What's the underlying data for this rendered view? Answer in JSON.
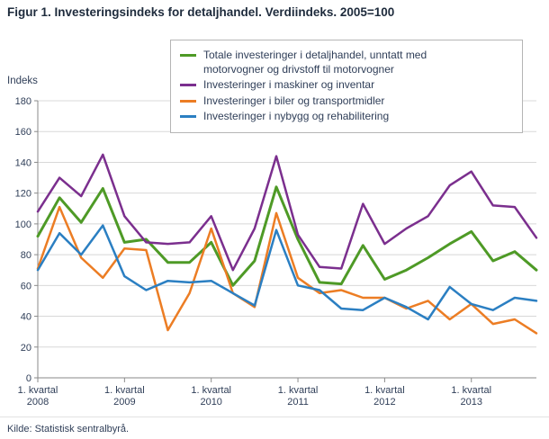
{
  "source": "Kilde: Statistisk sentralbyrå.",
  "chart_data": {
    "type": "line",
    "title": "Figur 1. Investeringsindeks for detaljhandel. Verdiindeks. 2005=100",
    "ylabel": "Indeks",
    "xlabel": "",
    "ylim": [
      0,
      180
    ],
    "ytick_step": 20,
    "y_tick_labels": [
      0,
      20,
      40,
      60,
      80,
      100,
      120,
      140,
      160,
      180
    ],
    "grid": true,
    "legend_position": "top-inside",
    "categories": [
      "2008K1",
      "2008K2",
      "2008K3",
      "2008K4",
      "2009K1",
      "2009K2",
      "2009K3",
      "2009K4",
      "2010K1",
      "2010K2",
      "2010K3",
      "2010K4",
      "2011K1",
      "2011K2",
      "2011K3",
      "2011K4",
      "2012K1",
      "2012K2",
      "2012K3",
      "2012K4",
      "2013K1",
      "2013K2",
      "2013K3",
      "2013K4"
    ],
    "x_ticks": [
      {
        "index": 0,
        "line1": "1. kvartal",
        "line2": "2008"
      },
      {
        "index": 4,
        "line1": "1. kvartal",
        "line2": "2009"
      },
      {
        "index": 8,
        "line1": "1. kvartal",
        "line2": "2010"
      },
      {
        "index": 12,
        "line1": "1. kvartal",
        "line2": "2011"
      },
      {
        "index": 16,
        "line1": "1. kvartal",
        "line2": "2012"
      },
      {
        "index": 20,
        "line1": "1. kvartal",
        "line2": "2013"
      }
    ],
    "series": [
      {
        "id": "totale-detaljhandel",
        "name": "Totale investeringer i detaljhandel, unntatt med motorvogner og drivstoff til motorvogner",
        "color": "#4e9a26",
        "values": [
          92,
          117,
          101,
          123,
          88,
          90,
          75,
          75,
          88,
          60,
          76,
          124,
          90,
          62,
          61,
          86,
          64,
          70,
          78,
          87,
          95,
          76,
          82,
          70
        ]
      },
      {
        "id": "maskiner-inventar",
        "name": "Investeringer i maskiner og inventar",
        "color": "#7b2f8e",
        "values": [
          108,
          130,
          118,
          145,
          105,
          88,
          87,
          88,
          105,
          70,
          97,
          144,
          93,
          72,
          71,
          113,
          87,
          97,
          105,
          125,
          134,
          112,
          111,
          91
        ]
      },
      {
        "id": "biler-transportmidler",
        "name": "Investeringer i biler og transportmidler",
        "color": "#ec7d24",
        "values": [
          71,
          111,
          78,
          65,
          84,
          83,
          31,
          55,
          97,
          55,
          46,
          107,
          65,
          55,
          57,
          52,
          52,
          45,
          50,
          38,
          48,
          35,
          38,
          29
        ]
      },
      {
        "id": "nybygg-rehabilitering",
        "name": "Investeringer i nybygg og rehabilitering",
        "color": "#2b7fc2",
        "values": [
          70,
          94,
          80,
          99,
          66,
          57,
          63,
          62,
          63,
          55,
          47,
          96,
          60,
          57,
          45,
          44,
          52,
          46,
          38,
          59,
          48,
          44,
          52,
          50
        ]
      }
    ]
  }
}
